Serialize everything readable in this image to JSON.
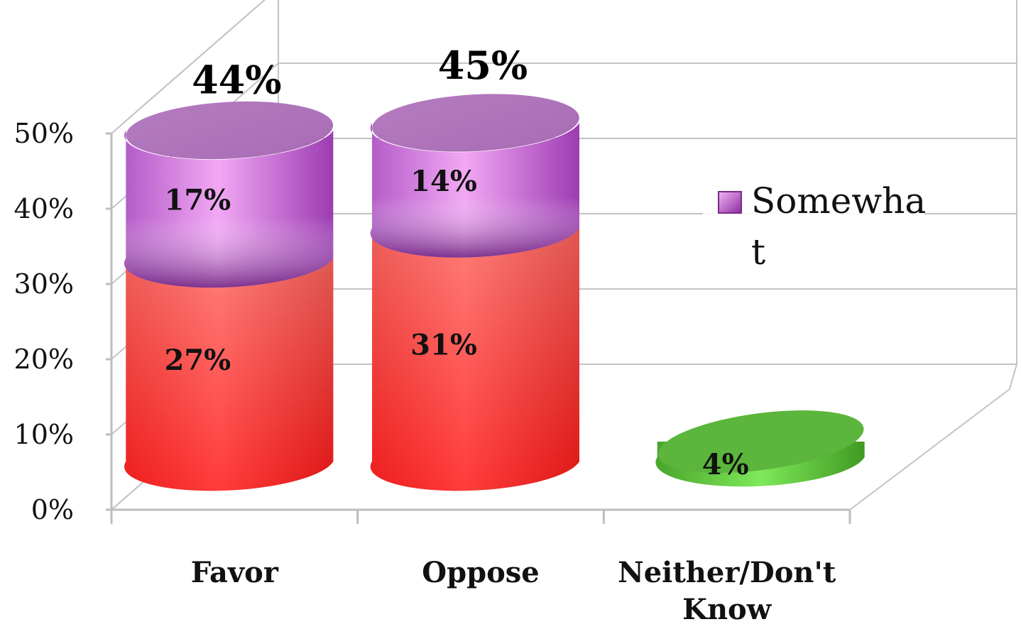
{
  "chart_data": {
    "type": "bar",
    "stacked": true,
    "three_d": true,
    "categories": [
      "Favor",
      "Oppose",
      "Neither/Don't Know"
    ],
    "series": [
      {
        "values": [
          27,
          31,
          4
        ],
        "colors": [
          "#ee3b3b",
          "#ee3b3b",
          "#5ec43a"
        ]
      },
      {
        "name": "Somewhat",
        "values": [
          17,
          14,
          0
        ],
        "color": "#c46ad8"
      }
    ],
    "segment_labels": [
      [
        "27%",
        "31%",
        "4%"
      ],
      [
        "17%",
        "14%",
        ""
      ]
    ],
    "totals": [
      "44%",
      "45%",
      ""
    ],
    "yticks": [
      "0%",
      "10%",
      "20%",
      "30%",
      "40%",
      "50%"
    ],
    "ylim": [
      0,
      50
    ],
    "grid": true,
    "legend": {
      "position": "right",
      "entries": [
        "Somewha",
        "t"
      ]
    }
  }
}
